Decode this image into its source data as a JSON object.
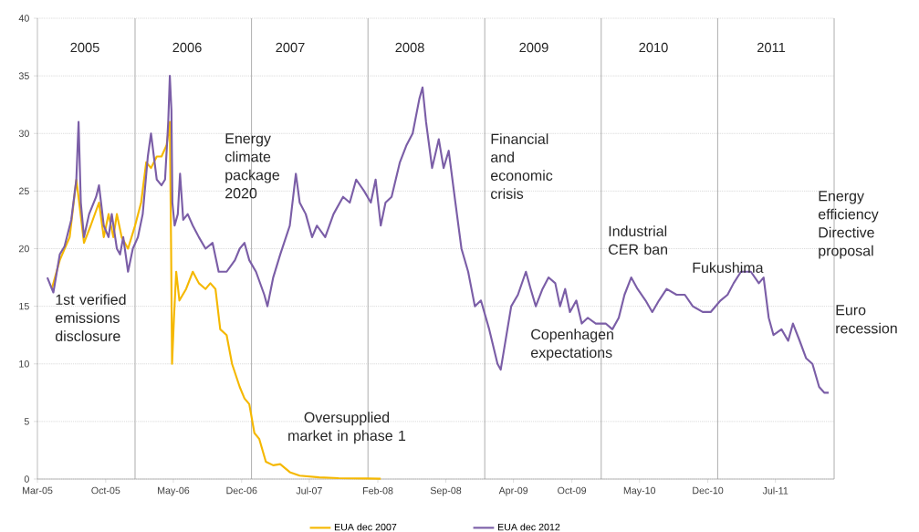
{
  "chart_data": {
    "type": "line",
    "xlim": [
      "2005-03-01",
      "2012-01-01"
    ],
    "ylim": [
      0,
      40
    ],
    "yticks": [
      0,
      5,
      10,
      15,
      20,
      25,
      30,
      35,
      40
    ],
    "xticks": [
      {
        "value": "2005-03-01",
        "label": "Mar-05"
      },
      {
        "value": "2005-10-01",
        "label": "Oct-05"
      },
      {
        "value": "2006-05-01",
        "label": "May-06"
      },
      {
        "value": "2006-12-01",
        "label": "Dec-06"
      },
      {
        "value": "2007-07-01",
        "label": "Jul-07"
      },
      {
        "value": "2008-02-01",
        "label": "Feb-08"
      },
      {
        "value": "2008-09-01",
        "label": "Sep-08"
      },
      {
        "value": "2009-04-01",
        "label": "Apr-09"
      },
      {
        "value": "2009-10-01",
        "label": "Oct-09"
      },
      {
        "value": "2010-05-01",
        "label": "May-10"
      },
      {
        "value": "2010-12-01",
        "label": "Dec-10"
      },
      {
        "value": "2011-07-01",
        "label": "Jul-11"
      }
    ],
    "grid": "y",
    "legend": "bottom",
    "marker": "none",
    "ref_lines": [
      {
        "axis": "x",
        "value": "2006-01-01"
      },
      {
        "axis": "x",
        "value": "2007-01-01"
      },
      {
        "axis": "x",
        "value": "2008-01-01"
      },
      {
        "axis": "x",
        "value": "2009-01-01"
      },
      {
        "axis": "x",
        "value": "2010-01-01"
      },
      {
        "axis": "x",
        "value": "2011-01-01"
      },
      {
        "axis": "x",
        "value": "2012-01-01"
      }
    ],
    "annotations": [
      "2005",
      "2006",
      "2007",
      "2008",
      "2009",
      "2010",
      "2011",
      "1st verified emissions disclosure",
      "Energy climate package 2020",
      "Oversupplied market in phase 1",
      "Financial and economic crisis",
      "Copenhagen expectations",
      "Industrial CER ban",
      "Fukushima",
      "Energy efficiency Directive proposal",
      "Euro recession"
    ],
    "series": [
      {
        "name": "EUA dec 2007",
        "color": "#f5b800",
        "x": [
          "2005-04-15",
          "2005-05-10",
          "2005-06-10",
          "2005-07-01",
          "2005-07-10",
          "2005-07-25",
          "2005-08-15",
          "2005-09-10",
          "2005-09-25",
          "2005-10-10",
          "2005-10-25",
          "2005-11-05",
          "2005-11-20",
          "2005-12-10",
          "2006-01-01",
          "2006-01-20",
          "2006-02-05",
          "2006-02-20",
          "2006-03-10",
          "2006-03-25",
          "2006-04-10",
          "2006-04-20",
          "2006-04-24",
          "2006-04-27",
          "2006-05-03",
          "2006-05-10",
          "2006-05-20",
          "2006-06-10",
          "2006-07-01",
          "2006-07-20",
          "2006-08-10",
          "2006-08-25",
          "2006-09-10",
          "2006-09-25",
          "2006-10-15",
          "2006-11-01",
          "2006-11-25",
          "2006-12-10",
          "2006-12-25",
          "2007-01-10",
          "2007-01-25",
          "2007-02-15",
          "2007-03-10",
          "2007-04-01",
          "2007-05-01",
          "2007-06-01",
          "2007-08-01",
          "2007-10-01",
          "2008-01-01",
          "2008-02-10"
        ],
        "values": [
          16.5,
          19,
          21,
          26,
          24,
          20.5,
          22,
          24,
          21,
          23,
          21,
          23,
          21,
          20,
          22,
          24,
          27.5,
          27,
          28,
          28,
          29,
          31,
          20,
          10,
          14,
          18,
          15.5,
          16.5,
          18,
          17,
          16.5,
          17,
          16.5,
          13,
          12.5,
          10,
          8,
          7,
          6.5,
          4,
          3.5,
          1.5,
          1.2,
          1.3,
          0.6,
          0.3,
          0.15,
          0.08,
          0.05,
          0.03
        ]
      },
      {
        "name": "EUA dec 2012",
        "color": "#7b5ea7",
        "x": [
          "2005-04-01",
          "2005-04-20",
          "2005-05-10",
          "2005-05-25",
          "2005-06-15",
          "2005-07-01",
          "2005-07-08",
          "2005-07-15",
          "2005-07-25",
          "2005-08-10",
          "2005-09-01",
          "2005-09-10",
          "2005-09-25",
          "2005-10-10",
          "2005-10-20",
          "2005-11-05",
          "2005-11-15",
          "2005-11-25",
          "2005-12-10",
          "2005-12-25",
          "2006-01-10",
          "2006-01-25",
          "2006-02-10",
          "2006-02-20",
          "2006-03-01",
          "2006-03-10",
          "2006-03-25",
          "2006-04-05",
          "2006-04-15",
          "2006-04-20",
          "2006-04-25",
          "2006-04-28",
          "2006-05-05",
          "2006-05-15",
          "2006-05-22",
          "2006-06-01",
          "2006-06-15",
          "2006-07-01",
          "2006-07-20",
          "2006-08-10",
          "2006-09-01",
          "2006-09-20",
          "2006-10-15",
          "2006-11-10",
          "2006-11-25",
          "2006-12-10",
          "2006-12-25",
          "2007-01-15",
          "2007-02-10",
          "2007-02-20",
          "2007-03-10",
          "2007-04-01",
          "2007-05-01",
          "2007-05-20",
          "2007-06-01",
          "2007-06-20",
          "2007-07-10",
          "2007-07-25",
          "2007-08-20",
          "2007-09-15",
          "2007-10-15",
          "2007-11-05",
          "2007-11-25",
          "2007-12-20",
          "2008-01-10",
          "2008-01-25",
          "2008-02-10",
          "2008-02-25",
          "2008-03-15",
          "2008-04-10",
          "2008-05-01",
          "2008-05-20",
          "2008-06-10",
          "2008-06-20",
          "2008-07-01",
          "2008-07-20",
          "2008-08-10",
          "2008-08-25",
          "2008-09-10",
          "2008-10-01",
          "2008-10-20",
          "2008-11-10",
          "2008-12-01",
          "2008-12-20",
          "2009-01-15",
          "2009-02-10",
          "2009-02-20",
          "2009-03-10",
          "2009-03-25",
          "2009-04-15",
          "2009-05-10",
          "2009-05-25",
          "2009-06-10",
          "2009-07-01",
          "2009-07-20",
          "2009-08-10",
          "2009-08-25",
          "2009-09-10",
          "2009-09-25",
          "2009-10-15",
          "2009-11-01",
          "2009-11-20",
          "2009-12-15",
          "2010-01-15",
          "2010-02-05",
          "2010-02-25",
          "2010-03-15",
          "2010-04-05",
          "2010-04-25",
          "2010-05-20",
          "2010-06-10",
          "2010-07-01",
          "2010-07-25",
          "2010-08-25",
          "2010-09-20",
          "2010-10-15",
          "2010-11-15",
          "2010-12-10",
          "2011-01-10",
          "2011-02-01",
          "2011-02-20",
          "2011-03-15",
          "2011-04-15",
          "2011-05-10",
          "2011-05-25",
          "2011-06-10",
          "2011-06-25",
          "2011-07-20",
          "2011-08-10",
          "2011-08-25",
          "2011-09-15",
          "2011-10-05",
          "2011-10-25",
          "2011-11-15",
          "2011-12-01",
          "2011-12-15"
        ],
        "values": [
          17.5,
          16.2,
          19.5,
          20.2,
          22.5,
          26,
          31,
          24,
          21,
          23,
          24.5,
          25.5,
          22,
          21,
          23,
          20,
          19.5,
          21,
          18,
          20,
          21,
          23,
          28,
          30,
          28,
          26,
          25.5,
          26,
          31,
          35,
          32,
          24,
          22,
          23,
          26.5,
          22.5,
          23,
          22,
          21,
          20,
          20.5,
          18,
          18,
          19,
          20,
          20.5,
          19,
          18,
          16,
          15,
          17.5,
          19.5,
          22,
          26.5,
          24,
          23,
          21,
          22,
          21,
          23,
          24.5,
          24,
          26,
          25,
          24,
          26,
          22,
          24,
          24.5,
          27.5,
          29,
          30,
          33,
          34,
          31,
          27,
          29.5,
          27,
          28.5,
          24,
          20,
          18,
          15,
          15.5,
          13,
          10,
          9.5,
          12.5,
          15,
          16,
          18,
          16.5,
          15,
          16.5,
          17.5,
          17,
          15,
          16.5,
          14.5,
          15.5,
          13.5,
          14,
          13.5,
          13.5,
          13,
          14,
          16,
          17.5,
          16.5,
          15.5,
          14.5,
          15.5,
          16.5,
          16,
          16,
          15,
          14.5,
          14.5,
          15.5,
          16,
          17,
          18,
          18,
          17,
          17.5,
          14,
          12.5,
          13,
          12,
          13.5,
          12,
          10.5,
          10,
          8,
          7.5,
          7.5
        ]
      }
    ]
  }
}
